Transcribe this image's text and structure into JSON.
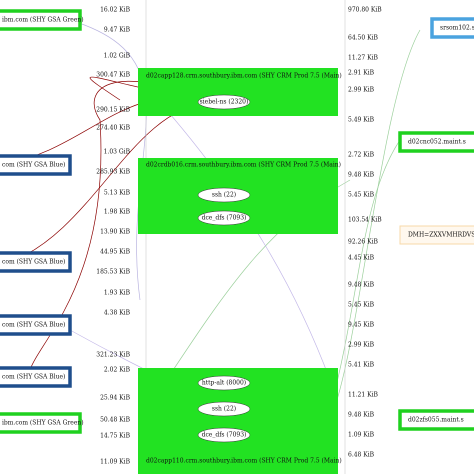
{
  "left_hosts": [
    "ibm.com (SHY GSA Green)",
    "com (SHY GSA Blue)",
    "com (SHY GSA Blue)",
    "com (SHY GSA Blue)",
    "com (SHY GSA Blue)",
    "ibm.com (SHY GSA Green)"
  ],
  "left_edge_labels": [
    "16.02 KiB",
    "9.47 KiB",
    "1.02 GiB",
    "300.47 KiB",
    "290.15 KiB",
    "274.40 KiB",
    "1.03 GiB",
    "285.93 KiB",
    "5.13 KiB",
    "1.98 KiB",
    "13.90 KiB",
    "44.95 KiB",
    "185.53 KiB",
    "1.93 KiB",
    "4.38 KiB",
    "321.23 KiB",
    "2.02 KiB",
    "25.94 KiB",
    "50.48 KiB",
    "14.75 KiB",
    "11.09 KiB"
  ],
  "center_hosts": [
    {
      "title": "d02capp128.crm.southbury.ibm.com (SHY CRM Prod 7.5 (Main)",
      "services": [
        "siebel-ns (2320)"
      ]
    },
    {
      "title": "d02crdb016.crm.southbury.ibm.com (SHY CRM Prod 7.5 (Main)",
      "services": [
        "ssh (22)",
        "dce_dfs (7093)"
      ]
    },
    {
      "title": "d02capp110.crm.southbury.ibm.com (SHY CRM Prod 7.5 (Main)",
      "services": [
        "http-alt (8000)",
        "ssh (22)",
        "dce_dfs (7093)"
      ]
    }
  ],
  "right_edge_labels": [
    "970.80 KiB",
    "64.50 KiB",
    "11.27 KiB",
    "2.91 KiB",
    "2.99 KiB",
    "5.49 KiB",
    "2.72 KiB",
    "9.48 KiB",
    "5.45 KiB",
    "103.54 KiB",
    "92.26 KiB",
    "4.45 KiB",
    "9.48 KiB",
    "5.45 KiB",
    "9.45 KiB",
    "2.99 KiB",
    "5.41 KiB",
    "11.21 KiB",
    "9.48 KiB",
    "1.09 KiB",
    "6.48 KiB"
  ],
  "right_hosts": [
    "srsom102.s",
    "d02cnc052.maint.s",
    "DMH=ZXXVMHRDVS.pol",
    "d02zfs055.maint.s"
  ]
}
